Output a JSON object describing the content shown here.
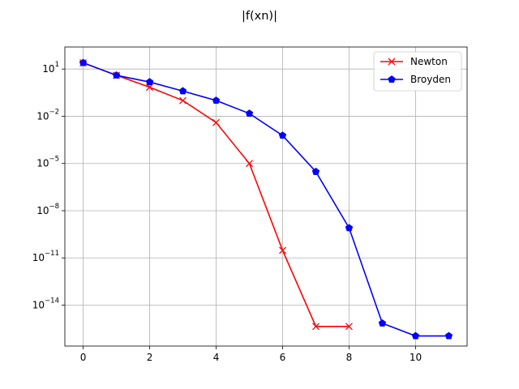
{
  "chart_data": {
    "type": "line",
    "title": "|f(xn)|",
    "xlabel": "",
    "ylabel": "",
    "yscale": "log",
    "xlim": [
      -0.55,
      11.55
    ],
    "ylim_log10": [
      -16.6,
      2.4
    ],
    "x_ticks": [
      0,
      2,
      4,
      6,
      8,
      10
    ],
    "y_ticks_exp": [
      1,
      -2,
      -5,
      -8,
      -11,
      -14
    ],
    "grid": true,
    "legend_position": "top-right",
    "series": [
      {
        "name": "Newton",
        "color": "#ff0000",
        "marker": "x",
        "x": [
          0,
          1,
          2,
          3,
          4,
          5,
          6,
          7,
          8
        ],
        "y": [
          25,
          4,
          0.7,
          0.1,
          0.004,
          1e-05,
          3e-11,
          4.4e-16,
          4.4e-16
        ]
      },
      {
        "name": "Broyden",
        "color": "#0000ff",
        "marker": "pentagon",
        "x": [
          0,
          1,
          2,
          3,
          4,
          5,
          6,
          7,
          8,
          9,
          10,
          11
        ],
        "y": [
          25,
          4,
          1.5,
          0.4,
          0.1,
          0.015,
          0.0006,
          3e-06,
          8e-10,
          7e-16,
          1.1e-16,
          1.1e-16
        ]
      }
    ]
  }
}
